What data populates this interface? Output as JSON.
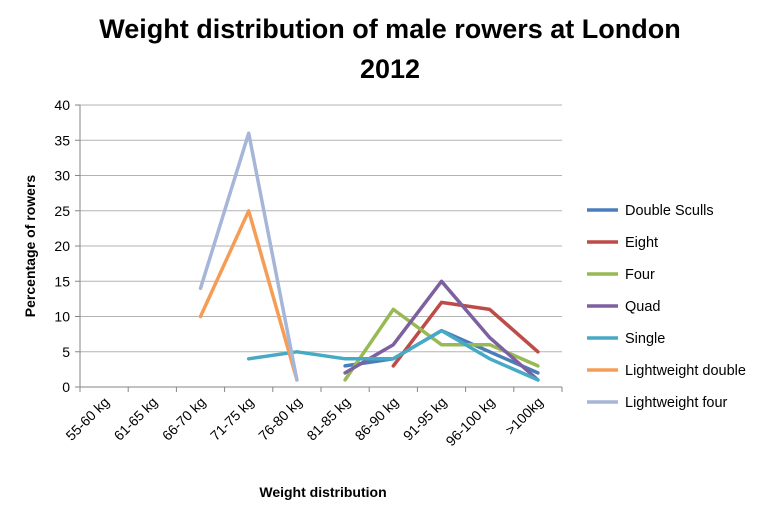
{
  "chart_data": {
    "type": "line",
    "title_line1": "Weight distribution of male rowers at London",
    "title_line2": "2012",
    "xlabel": "Weight distribution",
    "ylabel": "Percentage of rowers",
    "ylim": [
      0,
      40
    ],
    "yticks": [
      "0",
      "5",
      "10",
      "15",
      "20",
      "25",
      "30",
      "35",
      "40"
    ],
    "categories": [
      "55-60 kg",
      "61-65 kg",
      "66-70 kg",
      "71-75 kg",
      "76-80 kg",
      "81-85 kg",
      "86-90 kg",
      "91-95 kg",
      "96-100 kg",
      ">100kg"
    ],
    "grid": true,
    "legend_position": "right",
    "series": [
      {
        "name": "Double Sculls",
        "color": "#4a7ebb",
        "values": [
          null,
          null,
          null,
          null,
          null,
          3,
          4,
          8,
          5,
          2
        ]
      },
      {
        "name": "Eight",
        "color": "#be4b48",
        "values": [
          null,
          null,
          null,
          null,
          null,
          null,
          3,
          12,
          11,
          5
        ]
      },
      {
        "name": "Four",
        "color": "#98b954",
        "values": [
          null,
          null,
          null,
          null,
          null,
          1,
          11,
          6,
          6,
          3
        ]
      },
      {
        "name": "Quad",
        "color": "#7d60a0",
        "values": [
          null,
          null,
          null,
          null,
          null,
          2,
          6,
          15,
          7,
          1
        ]
      },
      {
        "name": "Single",
        "color": "#46aac5",
        "values": [
          null,
          null,
          null,
          4,
          5,
          4,
          4,
          8,
          4,
          1
        ]
      },
      {
        "name": "Lightweight double",
        "color": "#f59d56",
        "values": [
          null,
          null,
          10,
          25,
          1,
          null,
          null,
          null,
          null,
          null
        ]
      },
      {
        "name": "Lightweight four",
        "color": "#a5b6d9",
        "values": [
          null,
          null,
          14,
          36,
          1,
          null,
          null,
          null,
          null,
          null
        ]
      }
    ]
  }
}
